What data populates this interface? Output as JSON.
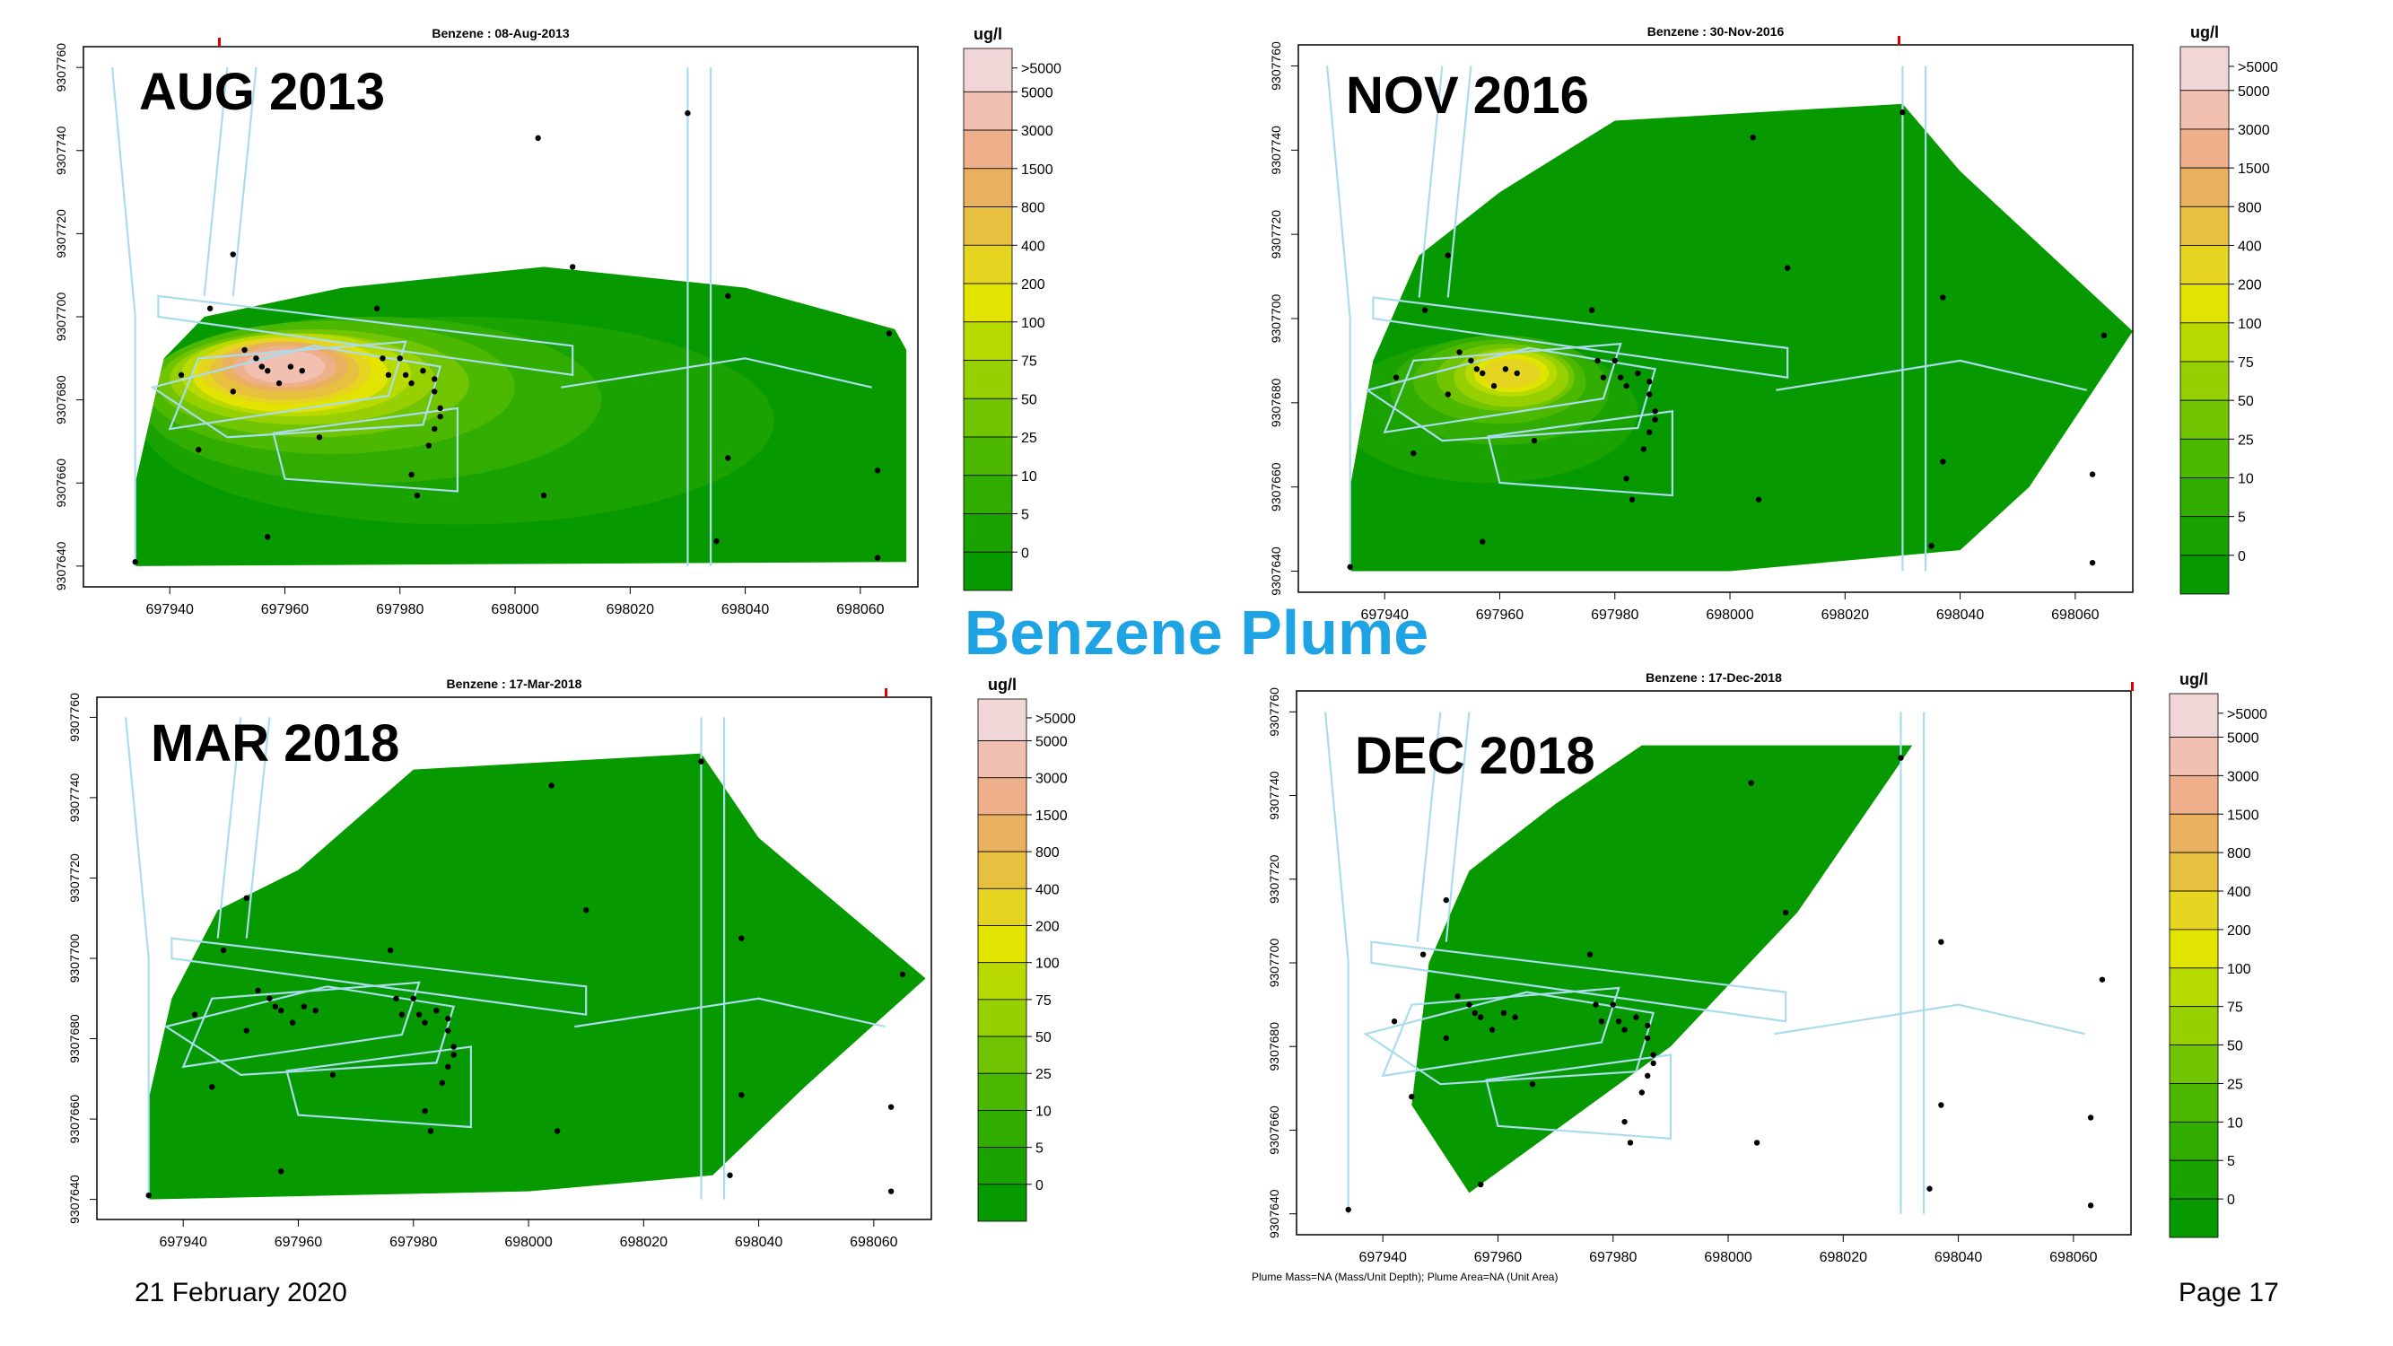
{
  "slide": {
    "title": "Benzene Plume",
    "date": "21 February 2020",
    "page": "Page 17"
  },
  "legend": {
    "unit": "ug/l",
    "levels": [
      ">5000",
      "5000",
      "3000",
      "1500",
      "800",
      "400",
      "200",
      "100",
      "75",
      "50",
      "25",
      "10",
      "5",
      "0"
    ],
    "colors": [
      "#f0d6d6",
      "#f1c0b0",
      "#eeb08a",
      "#e9b060",
      "#e8c040",
      "#e6d520",
      "#e3e300",
      "#b8da00",
      "#96d000",
      "#70c400",
      "#4cb800",
      "#30ad00",
      "#1aa300",
      "#069a00"
    ]
  },
  "chart_data": [
    {
      "type": "heatmap",
      "label": "AUG 2013",
      "title": "Benzene  : 08-Aug-2013",
      "x_ticks": [
        "697940",
        "697960",
        "697980",
        "698000",
        "698020",
        "698040",
        "698060"
      ],
      "y_ticks": [
        "9307640",
        "9307660",
        "9307680",
        "9307700",
        "9307720",
        "9307740",
        "9307760"
      ],
      "xlim": [
        697925,
        698070
      ],
      "ylim": [
        9307635,
        9307765
      ],
      "plume_max_level": ">5000",
      "wells": [
        [
          697934,
          9307641
        ],
        [
          697945,
          9307668
        ],
        [
          697951,
          9307715
        ],
        [
          697947,
          9307702
        ],
        [
          697956,
          9307688
        ],
        [
          697951,
          9307682
        ],
        [
          697953,
          9307692
        ],
        [
          697955,
          9307690
        ],
        [
          697957,
          9307687
        ],
        [
          697959,
          9307684
        ],
        [
          697961,
          9307688
        ],
        [
          697963,
          9307687
        ],
        [
          697966,
          9307671
        ],
        [
          697976,
          9307702
        ],
        [
          697977,
          9307690
        ],
        [
          697978,
          9307686
        ],
        [
          697980,
          9307690
        ],
        [
          697981,
          9307686
        ],
        [
          697982,
          9307684
        ],
        [
          697984,
          9307687
        ],
        [
          697986,
          9307685
        ],
        [
          697986,
          9307682
        ],
        [
          697987,
          9307678
        ],
        [
          697987,
          9307676
        ],
        [
          697986,
          9307673
        ],
        [
          697985,
          9307669
        ],
        [
          697982,
          9307662
        ],
        [
          697983,
          9307657
        ],
        [
          697957,
          9307647
        ],
        [
          697942,
          9307686
        ],
        [
          698005,
          9307657
        ],
        [
          698004,
          9307743
        ],
        [
          698030,
          9307749
        ],
        [
          698037,
          9307705
        ],
        [
          698037,
          9307666
        ],
        [
          698035,
          9307646
        ],
        [
          698065,
          9307696
        ],
        [
          698063,
          9307663
        ],
        [
          698063,
          9307642
        ],
        [
          698010,
          9307712
        ]
      ]
    },
    {
      "type": "heatmap",
      "label": "NOV 2016",
      "title": "Benzene  : 30-Nov-2016",
      "x_ticks": [
        "697940",
        "697960",
        "697980",
        "698000",
        "698020",
        "698040",
        "698060"
      ],
      "y_ticks": [
        "9307640",
        "9307660",
        "9307680",
        "9307700",
        "9307720",
        "9307740",
        "9307760"
      ],
      "xlim": [
        697925,
        698070
      ],
      "ylim": [
        9307635,
        9307765
      ],
      "plume_max_level": "1500",
      "wells": [
        [
          697934,
          9307641
        ],
        [
          697945,
          9307668
        ],
        [
          697951,
          9307715
        ],
        [
          697947,
          9307702
        ],
        [
          697956,
          9307688
        ],
        [
          697951,
          9307682
        ],
        [
          697953,
          9307692
        ],
        [
          697955,
          9307690
        ],
        [
          697957,
          9307687
        ],
        [
          697959,
          9307684
        ],
        [
          697961,
          9307688
        ],
        [
          697963,
          9307687
        ],
        [
          697966,
          9307671
        ],
        [
          697976,
          9307702
        ],
        [
          697977,
          9307690
        ],
        [
          697978,
          9307686
        ],
        [
          697980,
          9307690
        ],
        [
          697981,
          9307686
        ],
        [
          697982,
          9307684
        ],
        [
          697984,
          9307687
        ],
        [
          697986,
          9307685
        ],
        [
          697986,
          9307682
        ],
        [
          697987,
          9307678
        ],
        [
          697987,
          9307676
        ],
        [
          697986,
          9307673
        ],
        [
          697985,
          9307669
        ],
        [
          697982,
          9307662
        ],
        [
          697983,
          9307657
        ],
        [
          697957,
          9307647
        ],
        [
          697942,
          9307686
        ],
        [
          698005,
          9307657
        ],
        [
          698004,
          9307743
        ],
        [
          698030,
          9307749
        ],
        [
          698037,
          9307705
        ],
        [
          698037,
          9307666
        ],
        [
          698035,
          9307646
        ],
        [
          698065,
          9307696
        ],
        [
          698063,
          9307663
        ],
        [
          698063,
          9307642
        ],
        [
          698010,
          9307712
        ]
      ]
    },
    {
      "type": "heatmap",
      "label": "MAR 2018",
      "title": "Benzene  : 17-Mar-2018",
      "x_ticks": [
        "697940",
        "697960",
        "697980",
        "698000",
        "698020",
        "698040",
        "698060"
      ],
      "y_ticks": [
        "9307640",
        "9307660",
        "9307680",
        "9307700",
        "9307720",
        "9307740",
        "9307760"
      ],
      "xlim": [
        697925,
        698070
      ],
      "ylim": [
        9307635,
        9307765
      ],
      "plume_max_level": "0",
      "wells": [
        [
          697934,
          9307641
        ],
        [
          697945,
          9307668
        ],
        [
          697951,
          9307715
        ],
        [
          697947,
          9307702
        ],
        [
          697956,
          9307688
        ],
        [
          697951,
          9307682
        ],
        [
          697953,
          9307692
        ],
        [
          697955,
          9307690
        ],
        [
          697957,
          9307687
        ],
        [
          697959,
          9307684
        ],
        [
          697961,
          9307688
        ],
        [
          697963,
          9307687
        ],
        [
          697966,
          9307671
        ],
        [
          697976,
          9307702
        ],
        [
          697977,
          9307690
        ],
        [
          697978,
          9307686
        ],
        [
          697980,
          9307690
        ],
        [
          697981,
          9307686
        ],
        [
          697982,
          9307684
        ],
        [
          697984,
          9307687
        ],
        [
          697986,
          9307685
        ],
        [
          697986,
          9307682
        ],
        [
          697987,
          9307678
        ],
        [
          697987,
          9307676
        ],
        [
          697986,
          9307673
        ],
        [
          697985,
          9307669
        ],
        [
          697982,
          9307662
        ],
        [
          697983,
          9307657
        ],
        [
          697957,
          9307647
        ],
        [
          697942,
          9307686
        ],
        [
          698005,
          9307657
        ],
        [
          698004,
          9307743
        ],
        [
          698030,
          9307749
        ],
        [
          698037,
          9307705
        ],
        [
          698037,
          9307666
        ],
        [
          698035,
          9307646
        ],
        [
          698065,
          9307696
        ],
        [
          698063,
          9307663
        ],
        [
          698063,
          9307642
        ],
        [
          698010,
          9307712
        ]
      ]
    },
    {
      "type": "heatmap",
      "label": "DEC 2018",
      "title": "Benzene  : 17-Dec-2018",
      "x_ticks": [
        "697940",
        "697960",
        "697980",
        "698000",
        "698020",
        "698040",
        "698060"
      ],
      "y_ticks": [
        "9307640",
        "9307660",
        "9307680",
        "9307700",
        "9307720",
        "9307740",
        "9307760"
      ],
      "xlim": [
        697925,
        698070
      ],
      "ylim": [
        9307635,
        9307765
      ],
      "plume_max_level": "0",
      "note": "Plume Mass=NA (Mass/Unit Depth);  Plume Area=NA (Unit Area)",
      "wells": [
        [
          697934,
          9307641
        ],
        [
          697945,
          9307668
        ],
        [
          697951,
          9307715
        ],
        [
          697947,
          9307702
        ],
        [
          697956,
          9307688
        ],
        [
          697951,
          9307682
        ],
        [
          697953,
          9307692
        ],
        [
          697955,
          9307690
        ],
        [
          697957,
          9307687
        ],
        [
          697959,
          9307684
        ],
        [
          697961,
          9307688
        ],
        [
          697963,
          9307687
        ],
        [
          697966,
          9307671
        ],
        [
          697976,
          9307702
        ],
        [
          697977,
          9307690
        ],
        [
          697978,
          9307686
        ],
        [
          697980,
          9307690
        ],
        [
          697981,
          9307686
        ],
        [
          697982,
          9307684
        ],
        [
          697984,
          9307687
        ],
        [
          697986,
          9307685
        ],
        [
          697986,
          9307682
        ],
        [
          697987,
          9307678
        ],
        [
          697987,
          9307676
        ],
        [
          697986,
          9307673
        ],
        [
          697985,
          9307669
        ],
        [
          697982,
          9307662
        ],
        [
          697983,
          9307657
        ],
        [
          697957,
          9307647
        ],
        [
          697942,
          9307686
        ],
        [
          698005,
          9307657
        ],
        [
          698004,
          9307743
        ],
        [
          698030,
          9307749
        ],
        [
          698037,
          9307705
        ],
        [
          698037,
          9307666
        ],
        [
          698035,
          9307646
        ],
        [
          698065,
          9307696
        ],
        [
          698063,
          9307663
        ],
        [
          698063,
          9307642
        ],
        [
          698010,
          9307712
        ]
      ]
    }
  ]
}
